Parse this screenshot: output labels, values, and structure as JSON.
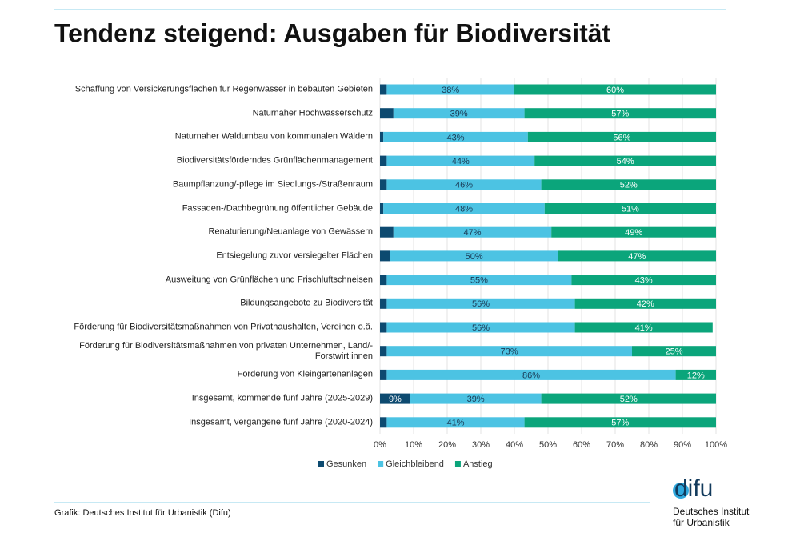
{
  "chart_data": {
    "type": "stacked-barh",
    "title": "Tendenz steigend: Ausgaben für Biodiversität",
    "source": "Grafik: Deutsches Institut für Urbanistik (Difu)",
    "categories": [
      "Schaffung von Versickerungsflächen für Regenwasser in bebauten Gebieten",
      "Naturnaher Hochwasserschutz",
      "Naturnaher Waldumbau von kommunalen Wäldern",
      "Biodiversitätsförderndes Grünflächenmanagement",
      "Baumpflanzung/-pflege im Siedlungs-/Straßenraum",
      "Fassaden-/Dachbegrünung öffentlicher Gebäude",
      "Renaturierung/Neuanlage von Gewässern",
      "Entsiegelung zuvor versiegelter Flächen",
      "Ausweitung von Grünflächen und Frischluftschneisen",
      "Bildungsangebote zu Biodiversität",
      "Förderung für Biodiversitätsmaßnahmen von Privathaushalten, Vereinen o.ä.",
      "Förderung für Biodiversitätsmaßnahmen von privaten Unternehmen, Land/-Forstwirt:innen",
      "Förderung von Kleingartenanlagen",
      "Insgesamt, kommende fünf Jahre (2025-2029)",
      "Insgesamt, vergangene fünf Jahre (2020-2024)"
    ],
    "series": [
      {
        "name": "Gesunken",
        "color": "#0d4a70",
        "label_color": "#ffffff",
        "values": [
          2,
          4,
          1,
          2,
          2,
          1,
          4,
          3,
          2,
          2,
          2,
          2,
          2,
          9,
          2
        ],
        "value_labels": [
          null,
          null,
          null,
          null,
          null,
          null,
          null,
          null,
          null,
          null,
          null,
          null,
          null,
          "9%",
          null
        ]
      },
      {
        "name": "Gleichbleibend",
        "color": "#4cc3e3",
        "label_color": "#1a3a55",
        "values": [
          38,
          39,
          43,
          44,
          46,
          48,
          47,
          50,
          55,
          56,
          56,
          73,
          86,
          39,
          41
        ],
        "value_labels": [
          "38%",
          "39%",
          "43%",
          "44%",
          "46%",
          "48%",
          "47%",
          "50%",
          "55%",
          "56%",
          "56%",
          "73%",
          "86%",
          "39%",
          "41%"
        ]
      },
      {
        "name": "Anstieg",
        "color": "#0ba57b",
        "label_color": "#ffffff",
        "values": [
          60,
          57,
          56,
          54,
          52,
          51,
          49,
          47,
          43,
          42,
          41,
          25,
          12,
          52,
          57
        ],
        "value_labels": [
          "60%",
          "57%",
          "56%",
          "54%",
          "52%",
          "51%",
          "49%",
          "47%",
          "43%",
          "42%",
          "41%",
          "25%",
          "12%",
          "52%",
          "57%"
        ]
      }
    ],
    "xlim": [
      0,
      100
    ],
    "xticks": [
      {
        "value": 0,
        "label": "0%"
      },
      {
        "value": 10,
        "label": "10%"
      },
      {
        "value": 20,
        "label": "20%"
      },
      {
        "value": 30,
        "label": "30%"
      },
      {
        "value": 40,
        "label": "40%"
      },
      {
        "value": 50,
        "label": "50%"
      },
      {
        "value": 60,
        "label": "60%"
      },
      {
        "value": 70,
        "label": "70%"
      },
      {
        "value": 80,
        "label": "80%"
      },
      {
        "value": 90,
        "label": "90%"
      },
      {
        "value": 100,
        "label": "100%"
      }
    ],
    "grid": true
  },
  "logo": {
    "mark": "difu",
    "line1": "Deutsches Institut",
    "line2": "für Urbanistik"
  }
}
